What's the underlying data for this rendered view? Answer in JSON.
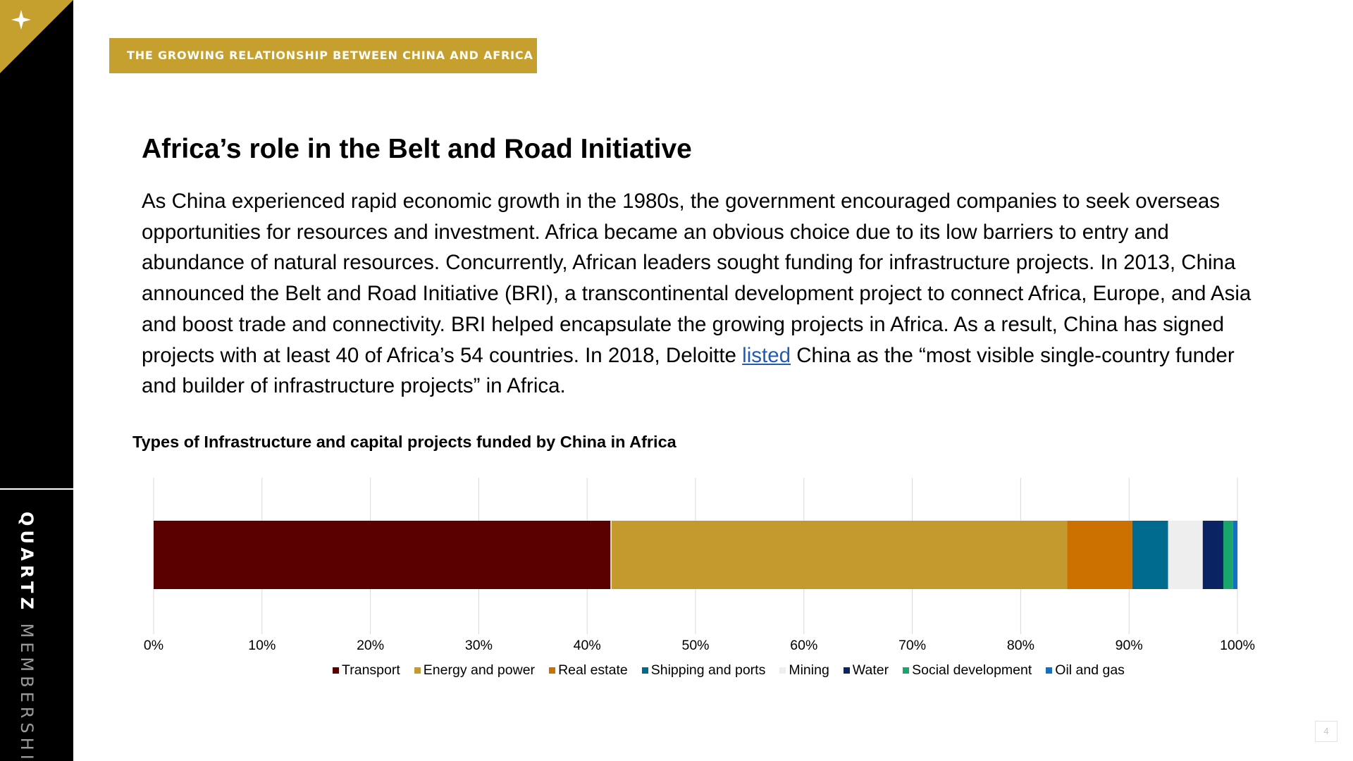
{
  "sidebar": {
    "brand_bold": "QUARTZ",
    "brand_light": "MEMBERSHIP",
    "corner_icon": "sparkle-star-icon",
    "colors": {
      "background": "#000000",
      "accent": "#c5a02f"
    }
  },
  "section_tag": "THE GROWING RELATIONSHIP BETWEEN CHINA AND AFRICA",
  "heading": "Africa’s role in the Belt and Road Initiative",
  "body": {
    "before_link": "As China experienced rapid economic growth in the 1980s, the government encouraged companies to seek overseas opportunities for resources and investment. Africa became an obvious choice due to its low barriers to entry and abundance of natural resources. Concurrently, African leaders sought funding for infrastructure projects. In 2013, China announced the Belt and Road Initiative (BRI), a transcontinental development project to connect Africa, Europe, and Asia and boost trade and connectivity. BRI helped encapsulate the growing projects in Africa. As a result, China has signed projects with at least 40 of Africa’s 54 countries. In 2018, Deloitte ",
    "link_text": "listed",
    "after_link": " China as the “most visible single-country funder and builder of infrastructure projects” in Africa."
  },
  "chart_data": {
    "type": "bar",
    "orientation": "horizontal",
    "stacked": "percent",
    "title": "Types of Infrastructure and capital projects funded by China in Africa",
    "xlabel": "",
    "ylabel": "",
    "xlim": [
      0,
      100
    ],
    "x_ticks": [
      "0%",
      "10%",
      "20%",
      "30%",
      "40%",
      "50%",
      "60%",
      "70%",
      "80%",
      "90%",
      "100%"
    ],
    "grid": "vertical",
    "legend_position": "bottom",
    "series": [
      {
        "name": "Transport",
        "values": [
          42.2
        ],
        "color": "#5a0000"
      },
      {
        "name": "Energy and power",
        "values": [
          42.1
        ],
        "color": "#c4992e"
      },
      {
        "name": "Real estate",
        "values": [
          6.0
        ],
        "color": "#cc7000"
      },
      {
        "name": "Shipping and ports",
        "values": [
          3.3
        ],
        "color": "#006a8e"
      },
      {
        "name": "Mining",
        "values": [
          3.2
        ],
        "color": "#eeeeee"
      },
      {
        "name": "Water",
        "values": [
          1.9
        ],
        "color": "#0a2463"
      },
      {
        "name": "Social development",
        "values": [
          0.9
        ],
        "color": "#1aa56a"
      },
      {
        "name": "Oil and gas",
        "values": [
          0.4
        ],
        "color": "#1570c4"
      }
    ]
  },
  "page_number": "4"
}
